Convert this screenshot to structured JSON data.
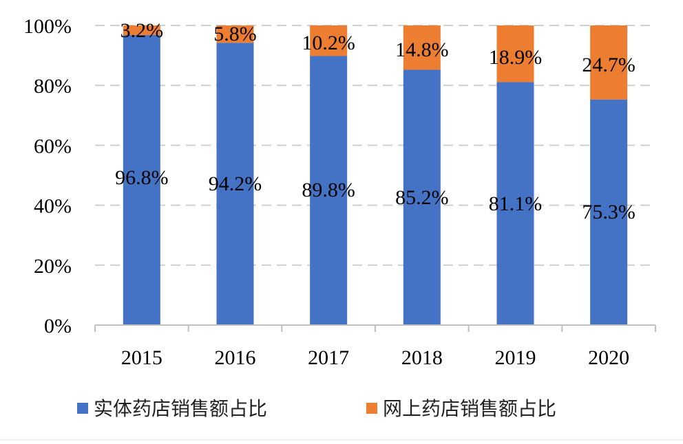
{
  "chart_data": {
    "type": "bar",
    "stacked": true,
    "categories": [
      "2015",
      "2016",
      "2017",
      "2018",
      "2019",
      "2020"
    ],
    "series": [
      {
        "name": "实体药店销售额占比",
        "values": [
          96.8,
          94.2,
          89.8,
          85.2,
          81.1,
          75.3
        ],
        "color": "#4472C4"
      },
      {
        "name": "网上药店销售额占比",
        "values": [
          3.2,
          5.8,
          10.2,
          14.8,
          18.9,
          24.7
        ],
        "color": "#ED7D31"
      }
    ],
    "series_labels": [
      [
        "96.8%",
        "94.2%",
        "89.8%",
        "85.2%",
        "81.1%",
        "75.3%"
      ],
      [
        "3.2%",
        "5.8%",
        "10.2%",
        "14.8%",
        "18.9%",
        "24.7%"
      ]
    ],
    "yticks": [
      {
        "value": 0,
        "label": "0%"
      },
      {
        "value": 20,
        "label": "20%"
      },
      {
        "value": 40,
        "label": "40%"
      },
      {
        "value": 60,
        "label": "60%"
      },
      {
        "value": 80,
        "label": "80%"
      },
      {
        "value": 100,
        "label": "100%"
      }
    ],
    "ylim": [
      0,
      100
    ],
    "grid": true,
    "legend_position": "bottom",
    "title": "",
    "xlabel": "",
    "ylabel": ""
  }
}
